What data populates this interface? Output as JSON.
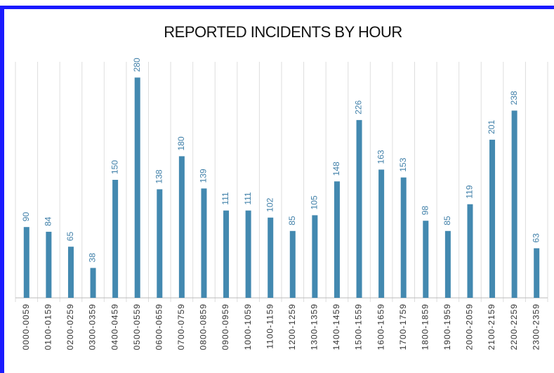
{
  "chart_data": {
    "type": "bar",
    "title": "REPORTED INCIDENTS BY HOUR",
    "categories": [
      "0000-0059",
      "0100-0159",
      "0200-0259",
      "0300-0359",
      "0400-0459",
      "0500-0559",
      "0600-0659",
      "0700-0759",
      "0800-0859",
      "0900-0959",
      "1000-1059",
      "1100-1159",
      "1200-1259",
      "1300-1359",
      "1400-1459",
      "1500-1559",
      "1600-1659",
      "1700-1759",
      "1800-1859",
      "1900-1959",
      "2000-2059",
      "2100-2159",
      "2200-2259",
      "2300-2359"
    ],
    "values": [
      90,
      84,
      65,
      38,
      150,
      280,
      138,
      180,
      139,
      111,
      111,
      102,
      85,
      105,
      148,
      226,
      163,
      153,
      98,
      85,
      119,
      201,
      238,
      63
    ],
    "color": "#4389b0",
    "ylim": [
      0,
      300
    ],
    "grid": true
  }
}
